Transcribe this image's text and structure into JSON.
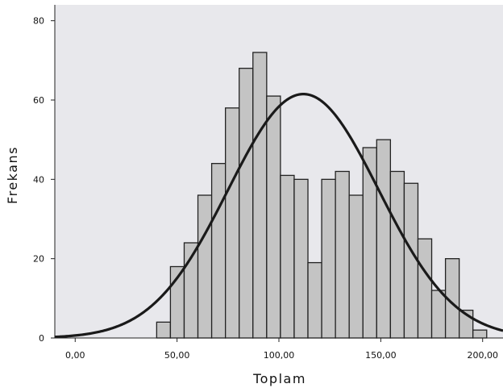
{
  "chart_data": {
    "type": "bar",
    "subtype": "histogram-with-normal-curve",
    "title": "",
    "xlabel": "Toplam",
    "ylabel": "Frekans",
    "xlim": [
      -10,
      210
    ],
    "ylim": [
      0,
      84
    ],
    "grid": false,
    "x_ticks": [
      {
        "value": 0,
        "label": "0,00"
      },
      {
        "value": 50,
        "label": "50,00"
      },
      {
        "value": 100,
        "label": "100,00"
      },
      {
        "value": 150,
        "label": "150,00"
      },
      {
        "value": 200,
        "label": "200,00"
      }
    ],
    "y_ticks": [
      {
        "value": 0,
        "label": "0"
      },
      {
        "value": 20,
        "label": "20"
      },
      {
        "value": 40,
        "label": "40"
      },
      {
        "value": 60,
        "label": "60"
      },
      {
        "value": 80,
        "label": "80"
      }
    ],
    "bin_width": 6.75,
    "bins": [
      {
        "x0": 40.0,
        "count": 4
      },
      {
        "x0": 46.75,
        "count": 18
      },
      {
        "x0": 53.5,
        "count": 24
      },
      {
        "x0": 60.25,
        "count": 36
      },
      {
        "x0": 67.0,
        "count": 44
      },
      {
        "x0": 73.75,
        "count": 58
      },
      {
        "x0": 80.5,
        "count": 68
      },
      {
        "x0": 87.25,
        "count": 72
      },
      {
        "x0": 94.0,
        "count": 61
      },
      {
        "x0": 100.75,
        "count": 41
      },
      {
        "x0": 107.5,
        "count": 40
      },
      {
        "x0": 114.25,
        "count": 19
      },
      {
        "x0": 121.0,
        "count": 40
      },
      {
        "x0": 127.75,
        "count": 42
      },
      {
        "x0": 134.5,
        "count": 36
      },
      {
        "x0": 141.25,
        "count": 48
      },
      {
        "x0": 148.0,
        "count": 50
      },
      {
        "x0": 154.75,
        "count": 42
      },
      {
        "x0": 161.5,
        "count": 39
      },
      {
        "x0": 168.25,
        "count": 25
      },
      {
        "x0": 175.0,
        "count": 12
      },
      {
        "x0": 181.75,
        "count": 20
      },
      {
        "x0": 188.5,
        "count": 7
      },
      {
        "x0": 195.25,
        "count": 2
      }
    ],
    "normal_curve": {
      "mean": 112,
      "sd": 37,
      "peak": 61.5
    },
    "colors": {
      "plot_background": "#e8e8ec",
      "bar_fill": "#c4c4c4",
      "bar_stroke": "#222222",
      "curve": "#1a1a1a",
      "axis": "#222222"
    }
  }
}
